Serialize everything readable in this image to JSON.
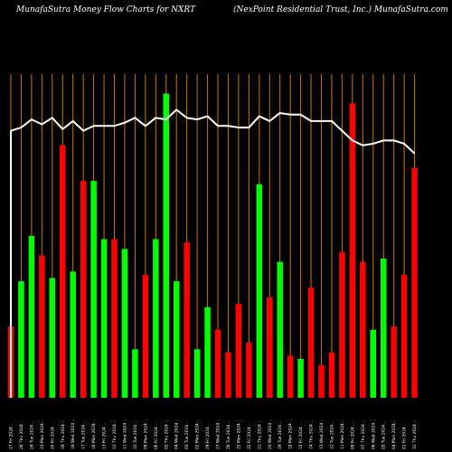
{
  "header": {
    "left": "MunafaSutra  Money Flow  Charts for NXRT",
    "right": "(NexPoint Residential Trust,  Inc.) MunafaSutra.com"
  },
  "colors": {
    "up": "#00ff00",
    "down": "#ff0000",
    "line": "#ffffff",
    "grid": "#c87800",
    "background": "#000000"
  },
  "chart_data": {
    "type": "bar",
    "title": "MunafaSutra  Money Flow  Charts for NXRT",
    "subtitle": "(NexPoint Residential Trust,  Inc.) MunafaSutra.com",
    "categories": [
      "27 Fri 2024 ..",
      "26 Thu 2024 ..",
      "24 Tue 2024 ..",
      "23 Mon 2024 ..",
      "20 Fri 2024 ..",
      "19 Thu 2024 ..",
      "18 Wed 2024 ..",
      "17 Tue 2024 ..",
      "16 Mon 2024 ..",
      "13 Fri 2024 ..",
      "12 Thu 2024 ..",
      "11 Wed 2024 ..",
      "10 Tue 2024 ..",
      "09 Mon 2024 ..",
      "06 Fri 2024 ..",
      "05 Thu 2024 ..",
      "04 Wed 2024 ..",
      "03 Tue 2024 ..",
      "02 Mon 2024 ..",
      "29 Fri 2024 ..",
      "27 Wed 2024 ..",
      "26 Tue 2024 ..",
      "25 Mon 2024 ..",
      "22 Fri 2024 ..",
      "21 Thu 2024 ..",
      "20 Wed 2024 ..",
      "19 Tue 2024 ..",
      "18 Mon 2024 ..",
      "15 Fri 2024 ..",
      "14 Thu 2024 ..",
      "13 Wed 2024 ..",
      "12 Tue 2024 ..",
      "11 Mon 2024 ..",
      "08 Fri 2024 ..",
      "07 Thu 2024 ..",
      "06 Wed 2024 ..",
      "05 Tue 2024 ..",
      "04 Mon 2024 ..",
      "01 Fri 2024 ..",
      "31 Thu 2024 .."
    ],
    "money_flow": [
      22,
      36,
      50,
      44,
      37,
      78,
      39,
      67,
      67,
      49,
      49,
      46,
      15,
      38,
      49,
      94,
      36,
      48,
      15,
      28,
      21,
      14,
      29,
      17,
      66,
      31,
      42,
      13,
      12,
      34,
      10,
      14,
      45,
      91,
      42,
      21,
      43,
      22,
      38,
      71
    ],
    "direction": [
      "down",
      "up",
      "up",
      "down",
      "up",
      "down",
      "up",
      "down",
      "up",
      "up",
      "down",
      "up",
      "up",
      "down",
      "up",
      "up",
      "up",
      "down",
      "up",
      "up",
      "down",
      "down",
      "down",
      "down",
      "up",
      "down",
      "up",
      "down",
      "up",
      "down",
      "down",
      "down",
      "down",
      "down",
      "down",
      "up",
      "up",
      "down",
      "down",
      "down"
    ],
    "price_line": [
      165,
      167,
      172,
      169,
      173,
      166,
      171,
      165,
      168,
      168,
      168,
      170,
      173,
      168,
      173,
      172,
      178,
      173,
      172,
      174,
      168,
      168,
      167,
      167,
      174,
      171,
      176,
      175,
      175,
      171,
      171,
      171,
      165,
      159,
      156,
      157,
      159,
      159,
      157,
      151
    ],
    "money_flow_range": [
      0,
      100
    ],
    "price_range": [
      0,
      200
    ],
    "grid": true
  }
}
